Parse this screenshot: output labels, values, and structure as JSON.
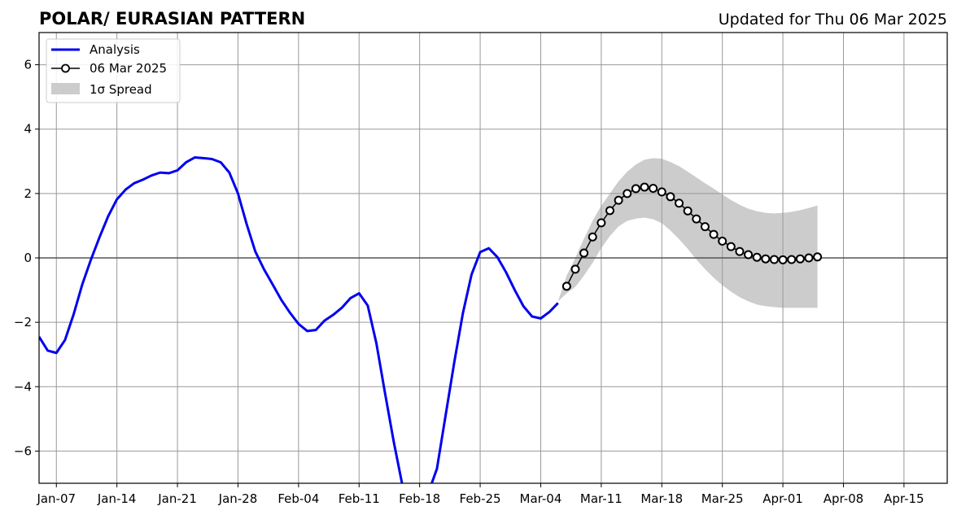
{
  "title_left": "POLAR/ EURASIAN  PATTERN",
  "title_right": "Updated for Thu 06 Mar 2025",
  "colors": {
    "analysis": "#0000ee",
    "forecast_line": "#000000",
    "forecast_marker_fill": "#ffffff",
    "spread": "#cccccc",
    "grid": "#999999",
    "zero_line": "#555555"
  },
  "chart_data": {
    "type": "line",
    "title": "POLAR/ EURASIAN  PATTERN",
    "subtitle": "Updated for Thu 06 Mar 2025",
    "x_axis": {
      "type": "date",
      "range": [
        "2025-01-05",
        "2025-04-20"
      ],
      "tick_labels": [
        "Jan-07",
        "Jan-14",
        "Jan-21",
        "Jan-28",
        "Feb-04",
        "Feb-11",
        "Feb-18",
        "Feb-25",
        "Mar-04",
        "Mar-11",
        "Mar-18",
        "Mar-25",
        "Apr-01",
        "Apr-08",
        "Apr-15"
      ],
      "tick_dates": [
        "2025-01-07",
        "2025-01-14",
        "2025-01-21",
        "2025-01-28",
        "2025-02-04",
        "2025-02-11",
        "2025-02-18",
        "2025-02-25",
        "2025-03-04",
        "2025-03-11",
        "2025-03-18",
        "2025-03-25",
        "2025-04-01",
        "2025-04-08",
        "2025-04-15"
      ]
    },
    "y_axis": {
      "range": [
        -7,
        7
      ],
      "ticks": [
        -6,
        -4,
        -2,
        0,
        2,
        4,
        6
      ],
      "tick_labels": [
        "−6",
        "−4",
        "−2",
        "0",
        "2",
        "4",
        "6"
      ]
    },
    "grid": true,
    "legend": {
      "placement": "top-left",
      "entries": [
        "Analysis",
        "06 Mar 2025",
        "1σ Spread"
      ]
    },
    "series": [
      {
        "name": "Analysis",
        "style": "line",
        "points": [
          [
            "2025-01-05",
            -2.45
          ],
          [
            "2025-01-06",
            -2.88
          ],
          [
            "2025-01-07",
            -2.95
          ],
          [
            "2025-01-08",
            -2.55
          ],
          [
            "2025-01-09",
            -1.75
          ],
          [
            "2025-01-10",
            -0.82
          ],
          [
            "2025-01-11",
            -0.05
          ],
          [
            "2025-01-12",
            0.65
          ],
          [
            "2025-01-13",
            1.3
          ],
          [
            "2025-01-14",
            1.82
          ],
          [
            "2025-01-15",
            2.12
          ],
          [
            "2025-01-16",
            2.32
          ],
          [
            "2025-01-17",
            2.43
          ],
          [
            "2025-01-18",
            2.56
          ],
          [
            "2025-01-19",
            2.65
          ],
          [
            "2025-01-20",
            2.63
          ],
          [
            "2025-01-21",
            2.72
          ],
          [
            "2025-01-22",
            2.97
          ],
          [
            "2025-01-23",
            3.12
          ],
          [
            "2025-01-24",
            3.1
          ],
          [
            "2025-01-25",
            3.07
          ],
          [
            "2025-01-26",
            2.97
          ],
          [
            "2025-01-27",
            2.65
          ],
          [
            "2025-01-28",
            2.0
          ],
          [
            "2025-01-29",
            1.05
          ],
          [
            "2025-01-30",
            0.2
          ],
          [
            "2025-01-31",
            -0.35
          ],
          [
            "2025-02-01",
            -0.82
          ],
          [
            "2025-02-02",
            -1.3
          ],
          [
            "2025-02-03",
            -1.7
          ],
          [
            "2025-02-04",
            -2.05
          ],
          [
            "2025-02-05",
            -2.27
          ],
          [
            "2025-02-06",
            -2.24
          ],
          [
            "2025-02-07",
            -1.95
          ],
          [
            "2025-02-08",
            -1.77
          ],
          [
            "2025-02-09",
            -1.55
          ],
          [
            "2025-02-10",
            -1.25
          ],
          [
            "2025-02-11",
            -1.1
          ],
          [
            "2025-02-12",
            -1.48
          ],
          [
            "2025-02-13",
            -2.65
          ],
          [
            "2025-02-14",
            -4.2
          ],
          [
            "2025-02-15",
            -5.7
          ],
          [
            "2025-02-16",
            -7.05
          ],
          [
            "2025-02-17",
            -7.6
          ],
          [
            "2025-02-18",
            -7.8
          ],
          [
            "2025-02-19",
            -7.3
          ],
          [
            "2025-02-20",
            -6.55
          ],
          [
            "2025-02-21",
            -4.9
          ],
          [
            "2025-02-22",
            -3.25
          ],
          [
            "2025-02-23",
            -1.72
          ],
          [
            "2025-02-24",
            -0.52
          ],
          [
            "2025-02-25",
            0.18
          ],
          [
            "2025-02-26",
            0.3
          ],
          [
            "2025-02-27",
            0.02
          ],
          [
            "2025-02-28",
            -0.45
          ],
          [
            "2025-03-01",
            -1.0
          ],
          [
            "2025-03-02",
            -1.5
          ],
          [
            "2025-03-03",
            -1.82
          ],
          [
            "2025-03-04",
            -1.88
          ],
          [
            "2025-03-05",
            -1.68
          ],
          [
            "2025-03-06",
            -1.4
          ]
        ]
      },
      {
        "name": "06 Mar 2025",
        "style": "line-markers",
        "points": [
          [
            "2025-03-07",
            -0.88
          ],
          [
            "2025-03-08",
            -0.35
          ],
          [
            "2025-03-09",
            0.15
          ],
          [
            "2025-03-10",
            0.65
          ],
          [
            "2025-03-11",
            1.09
          ],
          [
            "2025-03-12",
            1.47
          ],
          [
            "2025-03-13",
            1.79
          ],
          [
            "2025-03-14",
            2.0
          ],
          [
            "2025-03-15",
            2.15
          ],
          [
            "2025-03-16",
            2.2
          ],
          [
            "2025-03-17",
            2.16
          ],
          [
            "2025-03-18",
            2.05
          ],
          [
            "2025-03-19",
            1.9
          ],
          [
            "2025-03-20",
            1.7
          ],
          [
            "2025-03-21",
            1.46
          ],
          [
            "2025-03-22",
            1.21
          ],
          [
            "2025-03-23",
            0.97
          ],
          [
            "2025-03-24",
            0.73
          ],
          [
            "2025-03-25",
            0.52
          ],
          [
            "2025-03-26",
            0.35
          ],
          [
            "2025-03-27",
            0.2
          ],
          [
            "2025-03-28",
            0.1
          ],
          [
            "2025-03-29",
            0.02
          ],
          [
            "2025-03-30",
            -0.03
          ],
          [
            "2025-03-31",
            -0.05
          ],
          [
            "2025-04-01",
            -0.06
          ],
          [
            "2025-04-02",
            -0.05
          ],
          [
            "2025-04-03",
            -0.03
          ],
          [
            "2025-04-04",
            0.0
          ],
          [
            "2025-04-05",
            0.03
          ]
        ]
      },
      {
        "name": "1σ Spread",
        "style": "band",
        "points": [
          [
            "2025-03-06",
            -1.35,
            -1.35
          ],
          [
            "2025-03-07",
            -1.1,
            -0.55
          ],
          [
            "2025-03-08",
            -0.9,
            0.0
          ],
          [
            "2025-03-09",
            -0.55,
            0.6
          ],
          [
            "2025-03-10",
            -0.15,
            1.15
          ],
          [
            "2025-03-11",
            0.3,
            1.62
          ],
          [
            "2025-03-12",
            0.68,
            2.0
          ],
          [
            "2025-03-13",
            0.98,
            2.38
          ],
          [
            "2025-03-14",
            1.15,
            2.68
          ],
          [
            "2025-03-15",
            1.22,
            2.9
          ],
          [
            "2025-03-16",
            1.25,
            3.05
          ],
          [
            "2025-03-17",
            1.2,
            3.1
          ],
          [
            "2025-03-18",
            1.08,
            3.08
          ],
          [
            "2025-03-19",
            0.85,
            2.98
          ],
          [
            "2025-03-20",
            0.58,
            2.85
          ],
          [
            "2025-03-21",
            0.28,
            2.68
          ],
          [
            "2025-03-22",
            -0.05,
            2.5
          ],
          [
            "2025-03-23",
            -0.35,
            2.32
          ],
          [
            "2025-03-24",
            -0.62,
            2.15
          ],
          [
            "2025-03-25",
            -0.85,
            1.97
          ],
          [
            "2025-03-26",
            -1.05,
            1.8
          ],
          [
            "2025-03-27",
            -1.22,
            1.65
          ],
          [
            "2025-03-28",
            -1.35,
            1.53
          ],
          [
            "2025-03-29",
            -1.45,
            1.45
          ],
          [
            "2025-03-30",
            -1.5,
            1.4
          ],
          [
            "2025-03-31",
            -1.53,
            1.38
          ],
          [
            "2025-04-01",
            -1.55,
            1.4
          ],
          [
            "2025-04-02",
            -1.55,
            1.43
          ],
          [
            "2025-04-03",
            -1.55,
            1.48
          ],
          [
            "2025-04-04",
            -1.55,
            1.55
          ],
          [
            "2025-04-05",
            -1.55,
            1.63
          ]
        ]
      }
    ]
  }
}
